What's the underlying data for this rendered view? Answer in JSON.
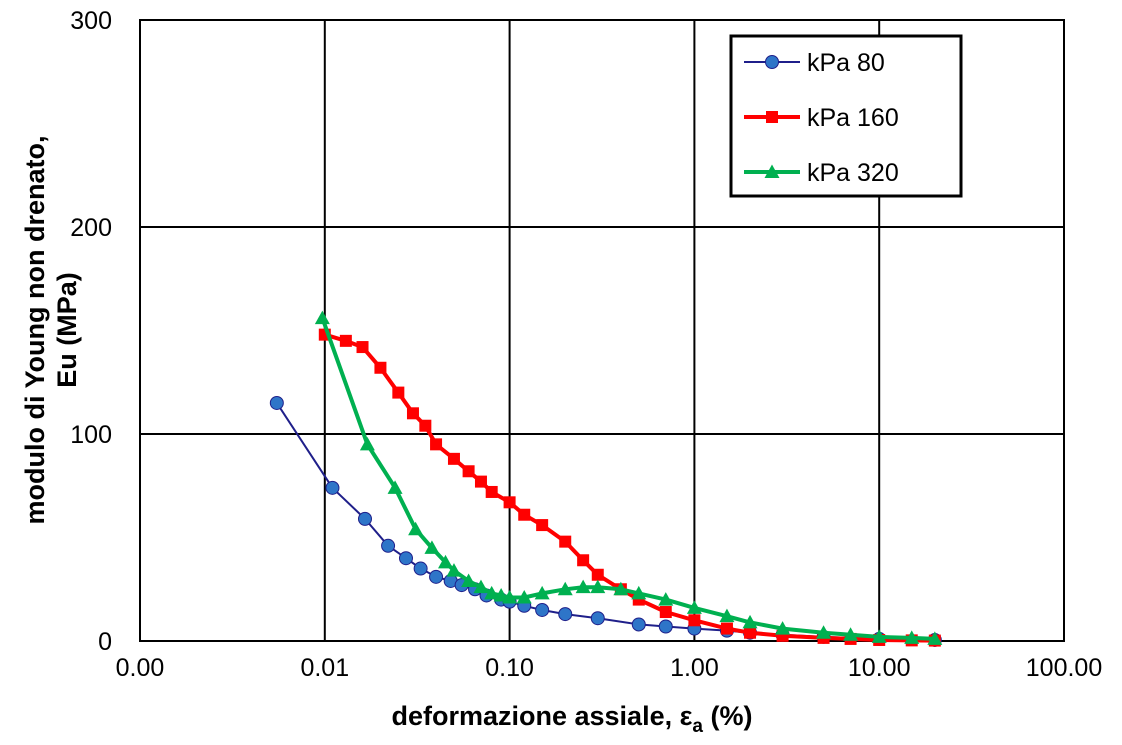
{
  "chart_data": {
    "type": "line",
    "x_scale": "log",
    "xlim": [
      0.001,
      100
    ],
    "ylim": [
      0,
      300
    ],
    "grid": true,
    "legend_position": "top-right",
    "xlabel": "deformazione assiale, ε",
    "xlabel_subscript": "a",
    "xlabel_suffix": " (%)",
    "ylabel_line1": "modulo di Young non drenato,",
    "ylabel_line2": "Eu (MPa)",
    "x_tick_labels": [
      "0.00",
      "0.01",
      "0.10",
      "1.00",
      "10.00",
      "100.00"
    ],
    "y_tick_labels": [
      "0",
      "100",
      "200",
      "300"
    ],
    "series": [
      {
        "name": "kPa 80",
        "color": "#1f1f8a",
        "marker": "circle",
        "marker_color": "#2e75c8",
        "line_width": 2,
        "x": [
          0.0055,
          0.011,
          0.0165,
          0.022,
          0.0275,
          0.033,
          0.04,
          0.048,
          0.055,
          0.065,
          0.075,
          0.09,
          0.1,
          0.12,
          0.15,
          0.2,
          0.3,
          0.5,
          0.7,
          1.0,
          1.5,
          2.0,
          3.0,
          5.0,
          10.0,
          20.0
        ],
        "y": [
          115,
          74,
          59,
          46,
          40,
          35,
          31,
          29,
          27,
          25,
          22,
          20,
          19,
          17,
          15,
          13,
          11,
          8,
          7,
          6,
          5,
          4,
          3,
          2,
          1,
          0.5
        ]
      },
      {
        "name": "kPa 160",
        "color": "#ff0000",
        "marker": "square",
        "marker_color": "#ff0000",
        "line_width": 4,
        "x": [
          0.01,
          0.013,
          0.016,
          0.02,
          0.025,
          0.03,
          0.035,
          0.04,
          0.05,
          0.06,
          0.07,
          0.08,
          0.1,
          0.12,
          0.15,
          0.2,
          0.25,
          0.3,
          0.4,
          0.5,
          0.7,
          1.0,
          1.5,
          2.0,
          3.0,
          5.0,
          7.0,
          10.0,
          15.0,
          20.0
        ],
        "y": [
          148,
          145,
          142,
          132,
          120,
          110,
          104,
          95,
          88,
          82,
          77,
          72,
          67,
          61,
          56,
          48,
          39,
          32,
          25,
          20,
          14,
          10,
          6,
          4,
          2.5,
          1.5,
          1,
          0.5,
          0.3,
          0.2
        ]
      },
      {
        "name": "kPa 320",
        "color": "#00b050",
        "marker": "triangle",
        "marker_color": "#00b050",
        "line_width": 4,
        "x": [
          0.0097,
          0.017,
          0.024,
          0.031,
          0.038,
          0.045,
          0.05,
          0.06,
          0.07,
          0.08,
          0.09,
          0.1,
          0.12,
          0.15,
          0.2,
          0.25,
          0.3,
          0.4,
          0.5,
          0.7,
          1.0,
          1.5,
          2.0,
          3.0,
          5.0,
          7.0,
          10.0,
          15.0,
          20.0
        ],
        "y": [
          156,
          95,
          74,
          54,
          45,
          38,
          34,
          29,
          26,
          23,
          22,
          21,
          21,
          23,
          25,
          26,
          26,
          25,
          23,
          20,
          16,
          12,
          9,
          6,
          4,
          3,
          2,
          1.5,
          1
        ]
      }
    ]
  }
}
